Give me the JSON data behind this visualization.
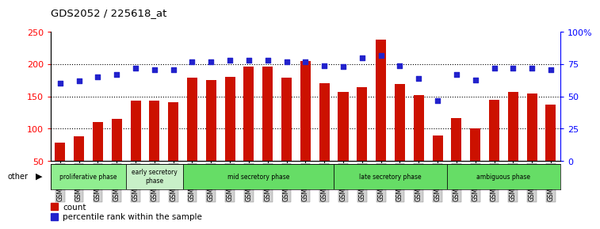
{
  "title": "GDS2052 / 225618_at",
  "samples": [
    "GSM109814",
    "GSM109815",
    "GSM109816",
    "GSM109817",
    "GSM109820",
    "GSM109821",
    "GSM109822",
    "GSM109824",
    "GSM109825",
    "GSM109826",
    "GSM109827",
    "GSM109828",
    "GSM109829",
    "GSM109830",
    "GSM109831",
    "GSM109834",
    "GSM109835",
    "GSM109836",
    "GSM109837",
    "GSM109838",
    "GSM109839",
    "GSM109818",
    "GSM109819",
    "GSM109823",
    "GSM109832",
    "GSM109833",
    "GSM109840"
  ],
  "counts": [
    78,
    88,
    110,
    115,
    143,
    143,
    141,
    179,
    175,
    180,
    197,
    196,
    179,
    205,
    171,
    157,
    165,
    238,
    169,
    152,
    89,
    117,
    101,
    145,
    157,
    155,
    138
  ],
  "percentiles": [
    60,
    62,
    65,
    67,
    72,
    71,
    71,
    77,
    77,
    78,
    78,
    78,
    77,
    77,
    74,
    73,
    80,
    82,
    74,
    64,
    47,
    67,
    63,
    72,
    72,
    72,
    71
  ],
  "phases": [
    {
      "label": "proliferative phase",
      "start": 0,
      "end": 4,
      "color": "#90EE90"
    },
    {
      "label": "early secretory\nphase",
      "start": 4,
      "end": 7,
      "color": "#c8f0c8"
    },
    {
      "label": "mid secretory phase",
      "start": 7,
      "end": 15,
      "color": "#66DD66"
    },
    {
      "label": "late secretory phase",
      "start": 15,
      "end": 21,
      "color": "#66DD66"
    },
    {
      "label": "ambiguous phase",
      "start": 21,
      "end": 27,
      "color": "#66DD66"
    }
  ],
  "bar_color": "#cc1100",
  "dot_color": "#2222cc",
  "ylim_left": [
    50,
    250
  ],
  "ylim_right": [
    0,
    100
  ],
  "yticks_left": [
    50,
    100,
    150,
    200,
    250
  ],
  "yticks_right": [
    0,
    25,
    50,
    75,
    100
  ],
  "ytick_labels_right": [
    "0",
    "25",
    "50",
    "75",
    "100%"
  ],
  "bg_color": "#ffffff",
  "tick_bg": "#d0d0d0"
}
